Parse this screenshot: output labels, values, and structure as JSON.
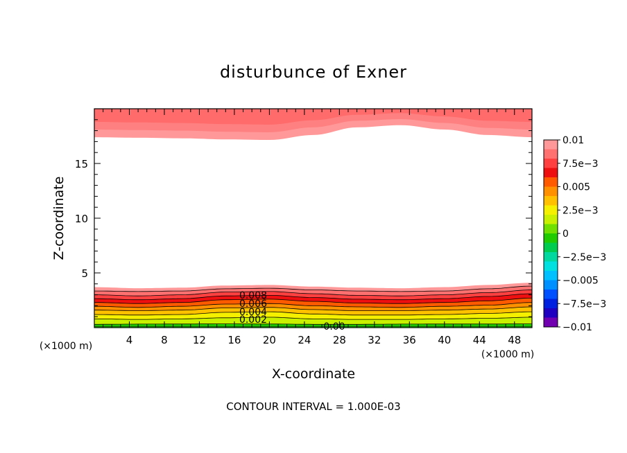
{
  "chart_data": {
    "type": "contour",
    "title": "disturbunce of Exner",
    "xlabel": "X-coordinate",
    "ylabel": "Z-coordinate",
    "x_unit_left": "(×1000 m)",
    "x_unit_right": "(×1000 m)",
    "xlim": [
      0,
      50
    ],
    "ylim": [
      0,
      20
    ],
    "xticks": [
      "4",
      "8",
      "12",
      "16",
      "20",
      "24",
      "28",
      "32",
      "36",
      "40",
      "44",
      "48"
    ],
    "yticks": [
      "5",
      "10",
      "15"
    ],
    "footer": "CONTOUR INTERVAL = 1.000E-03",
    "contour_labels": [
      "0.008",
      "0.006",
      "0.004",
      "0.002",
      "0.00"
    ],
    "colorbar": {
      "labels": [
        "0.01",
        "7.5e-3",
        "0.005",
        "2.5e-3",
        "0",
        "-2.5e-3",
        "-0.005",
        "-7.5e-3",
        "-0.01"
      ],
      "colors": [
        "#ff9999",
        "#ff7070",
        "#ff4040",
        "#ee1010",
        "#ff5a00",
        "#ff9000",
        "#ffc000",
        "#f5f000",
        "#c8f000",
        "#70e000",
        "#20cc00",
        "#00cc50",
        "#00d8a0",
        "#00e0e0",
        "#00c0ff",
        "#0090ff",
        "#0050ff",
        "#0020e0",
        "#2000c0",
        "#7000b0"
      ]
    },
    "bottom_band_contours": [
      {
        "level": 0.001,
        "z": [
          0.3,
          0.32,
          0.33,
          0.34,
          0.33,
          0.3,
          0.3,
          0.32,
          0.33,
          0.33,
          0.34
        ]
      },
      {
        "level": 0.002,
        "z": [
          0.8,
          0.75,
          0.8,
          0.9,
          0.95,
          0.8,
          0.75,
          0.75,
          0.8,
          0.85,
          0.95
        ]
      },
      {
        "level": 0.003,
        "z": [
          1.2,
          1.15,
          1.2,
          1.4,
          1.45,
          1.25,
          1.15,
          1.15,
          1.2,
          1.3,
          1.45
        ]
      },
      {
        "level": 0.004,
        "z": [
          1.6,
          1.55,
          1.6,
          1.8,
          1.85,
          1.65,
          1.55,
          1.55,
          1.6,
          1.7,
          1.9
        ]
      },
      {
        "level": 0.005,
        "z": [
          1.95,
          1.85,
          1.95,
          2.15,
          2.2,
          2.0,
          1.9,
          1.85,
          1.95,
          2.05,
          2.3
        ]
      },
      {
        "level": 0.006,
        "z": [
          2.3,
          2.2,
          2.3,
          2.55,
          2.6,
          2.4,
          2.25,
          2.2,
          2.3,
          2.45,
          2.7
        ]
      },
      {
        "level": 0.007,
        "z": [
          2.65,
          2.55,
          2.65,
          2.9,
          2.95,
          2.75,
          2.6,
          2.55,
          2.65,
          2.85,
          3.1
        ]
      },
      {
        "level": 0.008,
        "z": [
          3.0,
          2.9,
          3.0,
          3.25,
          3.3,
          3.1,
          2.95,
          2.9,
          3.0,
          3.2,
          3.45
        ]
      },
      {
        "level": 0.009,
        "z": [
          3.35,
          3.3,
          3.35,
          3.55,
          3.6,
          3.45,
          3.35,
          3.3,
          3.35,
          3.55,
          3.8
        ]
      },
      {
        "level": 0.01,
        "z": [
          3.7,
          3.6,
          3.65,
          3.85,
          3.9,
          3.75,
          3.65,
          3.6,
          3.7,
          3.9,
          4.1
        ]
      }
    ],
    "top_band_contours": [
      {
        "level": 0.01,
        "z": [
          17.4,
          17.35,
          17.3,
          17.2,
          17.15,
          17.6,
          18.3,
          18.5,
          18.1,
          17.6,
          17.4
        ]
      },
      {
        "level": 0.011,
        "z": [
          18.1,
          18.05,
          18.0,
          17.9,
          17.85,
          18.3,
          18.9,
          19.05,
          18.7,
          18.25,
          18.1
        ]
      },
      {
        "level": 0.012,
        "z": [
          18.8,
          18.75,
          18.7,
          18.6,
          18.55,
          18.95,
          19.45,
          19.6,
          19.3,
          18.9,
          18.8
        ]
      }
    ],
    "x_samples": [
      0,
      5,
      10,
      15,
      20,
      25,
      30,
      35,
      40,
      45,
      50
    ]
  }
}
